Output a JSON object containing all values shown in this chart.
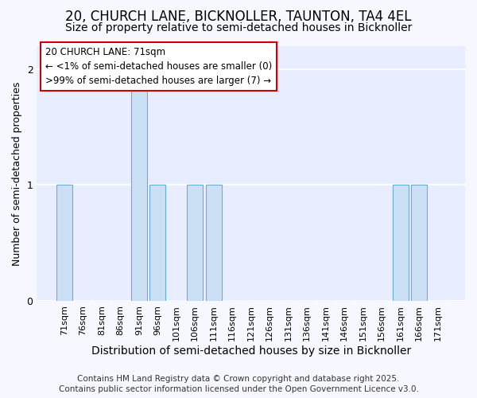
{
  "title_line1": "20, CHURCH LANE, BICKNOLLER, TAUNTON, TA4 4EL",
  "title_line2": "Size of property relative to semi-detached houses in Bicknoller",
  "xlabel": "Distribution of semi-detached houses by size in Bicknoller",
  "ylabel": "Number of semi-detached properties",
  "categories": [
    "71sqm",
    "76sqm",
    "81sqm",
    "86sqm",
    "91sqm",
    "96sqm",
    "101sqm",
    "106sqm",
    "111sqm",
    "116sqm",
    "121sqm",
    "126sqm",
    "131sqm",
    "136sqm",
    "141sqm",
    "146sqm",
    "151sqm",
    "156sqm",
    "161sqm",
    "166sqm",
    "171sqm"
  ],
  "values": [
    1,
    0,
    0,
    0,
    2,
    1,
    0,
    1,
    1,
    0,
    0,
    0,
    0,
    0,
    0,
    0,
    0,
    0,
    1,
    1,
    0
  ],
  "highlight_index": 0,
  "bar_color": "#cce0f5",
  "bar_edge_color": "#6aaed6",
  "annotation_box_color": "#ffffff",
  "annotation_border_color": "#cc0000",
  "annotation_text_line1": "20 CHURCH LANE: 71sqm",
  "annotation_text_line2": "← <1% of semi-detached houses are smaller (0)",
  "annotation_text_line3": ">99% of semi-detached houses are larger (7) →",
  "ylim": [
    0,
    2.2
  ],
  "yticks": [
    0,
    1,
    2
  ],
  "footnote_line1": "Contains HM Land Registry data © Crown copyright and database right 2025.",
  "footnote_line2": "Contains public sector information licensed under the Open Government Licence v3.0.",
  "bg_color": "#f7f8ff",
  "plot_bg_color": "#e8eeff",
  "grid_color": "#ffffff",
  "title_fontsize": 12,
  "subtitle_fontsize": 10,
  "annotation_fontsize": 8.5,
  "tick_fontsize": 8,
  "xlabel_fontsize": 10,
  "ylabel_fontsize": 9,
  "footnote_fontsize": 7.5
}
